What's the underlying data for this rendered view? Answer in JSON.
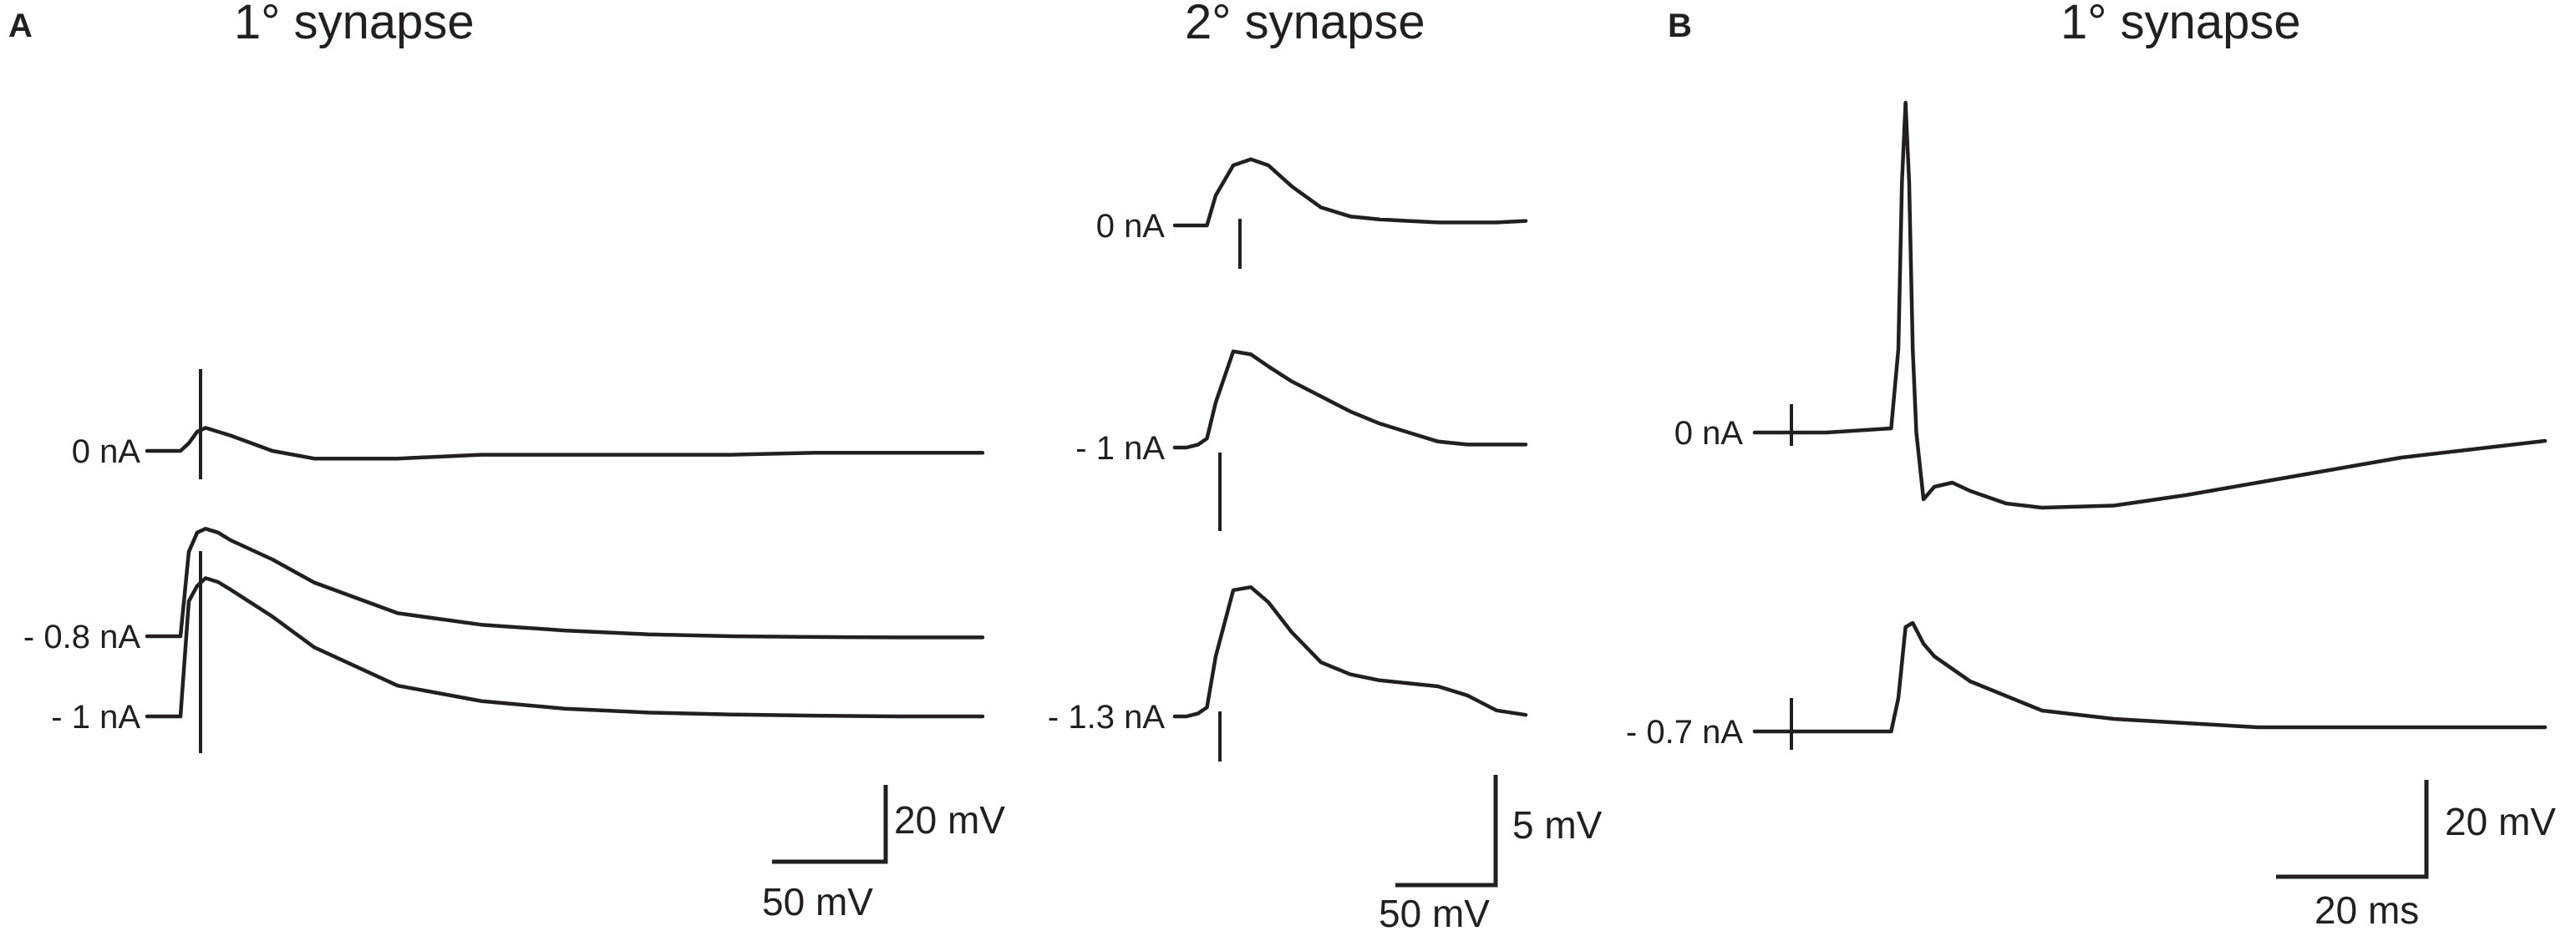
{
  "panels": {
    "a": {
      "label": "A",
      "primary_title": "1° synapse",
      "secondary_title": "2° synapse",
      "primary_scale": {
        "v_label": "20 mV",
        "h_label": "50 mV"
      },
      "secondary_scale": {
        "v_label": "5 mV",
        "h_label": "50 mV"
      }
    },
    "b": {
      "label": "B",
      "title": "1° synapse",
      "scale": {
        "v_label": "20 mV",
        "h_label": "20 ms"
      }
    }
  },
  "chart_data": [
    {
      "type": "line",
      "panel": "A",
      "title": "1° synapse",
      "series": [
        {
          "name": "0 nA",
          "color": "#231f20",
          "x": [
            0,
            25,
            40,
            50,
            60,
            70,
            85,
            100,
            150,
            200,
            300,
            400,
            500,
            600,
            700,
            800,
            900,
            1000
          ],
          "y": [
            0,
            0,
            0,
            2,
            5,
            6,
            5,
            4,
            0,
            -2,
            -2,
            -1,
            -1,
            -1,
            -1,
            -0.5,
            -0.5,
            -0.5
          ]
        },
        {
          "name": "- 0.8 nA",
          "color": "#231f20",
          "x": [
            0,
            25,
            40,
            50,
            60,
            70,
            85,
            100,
            150,
            200,
            300,
            400,
            500,
            600,
            700,
            800,
            900,
            1000
          ],
          "y": [
            0,
            0,
            0,
            22,
            27,
            28,
            27,
            25,
            20,
            14,
            6,
            3,
            1.5,
            0.5,
            0,
            -0.2,
            -0.3,
            -0.3
          ]
        },
        {
          "name": "- 1 nA",
          "color": "#231f20",
          "x": [
            0,
            25,
            40,
            50,
            60,
            70,
            85,
            100,
            150,
            200,
            300,
            400,
            500,
            600,
            700,
            800,
            900,
            1000
          ],
          "y": [
            0,
            0,
            0,
            30,
            34,
            36,
            35,
            33,
            26,
            18,
            8,
            4,
            2,
            1,
            0.5,
            0.2,
            0,
            0
          ]
        }
      ],
      "annotations": [
        "0 nA",
        "- 0.8 nA",
        "- 1 nA"
      ]
    },
    {
      "type": "line",
      "panel": "A",
      "title": "2° synapse",
      "series": [
        {
          "name": "0 nA",
          "color": "#231f20",
          "x": [
            0,
            20,
            40,
            55,
            70,
            100,
            130,
            160,
            200,
            250,
            300,
            350,
            400,
            450,
            500,
            550,
            600
          ],
          "y": [
            0,
            0,
            0,
            0,
            2,
            4,
            4.4,
            4,
            2.6,
            1.2,
            0.6,
            0.4,
            0.3,
            0.2,
            0.2,
            0.2,
            0.3
          ]
        },
        {
          "name": "- 1 nA",
          "color": "#231f20",
          "x": [
            0,
            20,
            40,
            55,
            70,
            100,
            130,
            160,
            200,
            250,
            300,
            350,
            400,
            450,
            500,
            550,
            600
          ],
          "y": [
            0,
            0,
            0.2,
            0.6,
            3,
            6.4,
            6.2,
            5.4,
            4.4,
            3.4,
            2.4,
            1.6,
            1.0,
            0.4,
            0.2,
            0.2,
            0.2
          ]
        },
        {
          "name": "- 1.3 nA",
          "color": "#231f20",
          "x": [
            0,
            20,
            40,
            55,
            70,
            100,
            130,
            160,
            200,
            250,
            300,
            350,
            400,
            450,
            500,
            550,
            600
          ],
          "y": [
            0,
            0,
            0.2,
            0.6,
            4,
            8.4,
            8.6,
            7.6,
            5.6,
            3.6,
            2.8,
            2.4,
            2.2,
            2.0,
            1.4,
            0.4,
            0.1
          ]
        }
      ],
      "annotations": [
        "0 nA",
        "- 1 nA",
        "- 1.3 nA"
      ]
    },
    {
      "type": "line",
      "panel": "B",
      "title": "1° synapse",
      "series": [
        {
          "name": "0 nA",
          "color": "#231f20",
          "x": [
            0,
            20,
            38,
            40,
            41,
            42,
            43,
            44,
            45,
            47,
            50,
            55,
            60,
            70,
            80,
            100,
            120,
            140,
            160,
            180,
            200,
            220
          ],
          "y": [
            0,
            0,
            1,
            20,
            60,
            79,
            60,
            20,
            0,
            -16,
            -13,
            -12,
            -14,
            -17,
            -18,
            -17.5,
            -15,
            -12,
            -9,
            -6,
            -4,
            -2
          ]
        },
        {
          "name": "- 0.7 nA",
          "color": "#231f20",
          "x": [
            0,
            20,
            38,
            40,
            42,
            44,
            47,
            50,
            60,
            80,
            100,
            120,
            140,
            160,
            180,
            200,
            220
          ],
          "y": [
            0,
            0,
            0,
            8,
            25,
            26,
            21,
            18,
            12,
            5,
            3,
            2,
            1,
            1,
            1,
            1,
            1
          ]
        }
      ],
      "annotations": [
        "0 nA",
        "- 0.7 nA"
      ]
    }
  ]
}
